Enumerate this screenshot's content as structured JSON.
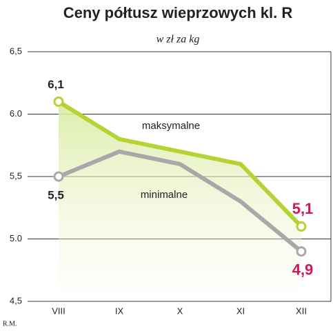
{
  "chart_data": {
    "type": "line",
    "title": "Ceny półtusz wieprzowych kl. R",
    "subtitle": "w zł za kg",
    "credit": "R.M.",
    "categories": [
      "VIII",
      "IX",
      "X",
      "XI",
      "XII"
    ],
    "series": [
      {
        "name": "maksymalne",
        "color": "#b6d335",
        "values": [
          6.1,
          5.8,
          5.7,
          5.6,
          5.1
        ],
        "value_labels": [
          "6,1",
          null,
          null,
          null,
          "5,1"
        ]
      },
      {
        "name": "minimalne",
        "color": "#a8a8a8",
        "values": [
          5.5,
          5.7,
          5.6,
          5.3,
          4.9
        ],
        "value_labels": [
          "5,5",
          null,
          null,
          null,
          "4,9"
        ]
      }
    ],
    "ylim": [
      4.5,
      6.5
    ],
    "yticks": [
      {
        "value": 4.5,
        "label": "4,5"
      },
      {
        "value": 5.0,
        "label": "5.0"
      },
      {
        "value": 5.5,
        "label": "5,5"
      },
      {
        "value": 6.0,
        "label": "6.0"
      },
      {
        "value": 6.5,
        "label": "6,5"
      }
    ],
    "grid": true
  }
}
